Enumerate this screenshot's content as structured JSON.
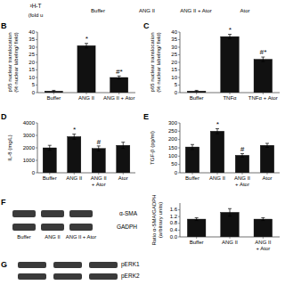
{
  "chart_data": [
    {
      "type": "strip",
      "y_label": "³H-T\n(fold u",
      "categories": [
        "Buffer",
        "ANG II",
        "ANG II + Ator",
        "Ator"
      ]
    },
    {
      "type": "bar",
      "title": "B",
      "categories": [
        "Buffer",
        "ANG II",
        "ANG II + Ator"
      ],
      "values": [
        1,
        31,
        10
      ],
      "errors": [
        0.5,
        1.5,
        1.0
      ],
      "y_label": "p65 nuclear translocation\n(% nuclear labeling/ field)",
      "ylim": [
        0,
        40
      ],
      "yticks": [
        0,
        5,
        10,
        15,
        20,
        25,
        30,
        35,
        40
      ],
      "annotations": [
        {
          "bar": 1,
          "text": "*"
        },
        {
          "bar": 2,
          "text": "#*"
        }
      ],
      "color": "#111111",
      "grid": false
    },
    {
      "type": "bar",
      "title": "C",
      "categories": [
        "Buffer",
        "TNFα",
        "TNFα + Ator"
      ],
      "values": [
        1,
        37,
        22
      ],
      "errors": [
        0.5,
        1.5,
        1.5
      ],
      "y_label": "p65 nuclear translocation\n(% nuclear labeling/ field)",
      "ylim": [
        0,
        40
      ],
      "yticks": [
        0,
        5,
        10,
        15,
        20,
        25,
        30,
        35,
        40
      ],
      "annotations": [
        {
          "bar": 1,
          "text": "*"
        },
        {
          "bar": 2,
          "text": "#*"
        }
      ],
      "color": "#111111",
      "grid": false
    },
    {
      "type": "bar",
      "title": "D",
      "categories": [
        "Buffer",
        "ANG II",
        "ANG II\n+ Ator",
        "Ator"
      ],
      "values": [
        2000,
        2900,
        1950,
        2200
      ],
      "errors": [
        200,
        200,
        200,
        250
      ],
      "y_label": "IL-8 (mg/L)",
      "ylim": [
        0,
        4000
      ],
      "yticks": [
        0,
        1000,
        2000,
        3000,
        4000
      ],
      "annotations": [
        {
          "bar": 1,
          "text": "*"
        },
        {
          "bar": 2,
          "text": "#"
        }
      ],
      "color": "#111111",
      "grid": false
    },
    {
      "type": "bar",
      "title": "E",
      "categories": [
        "Buffer",
        "ANG II",
        "ANG II\n+ Ator",
        "Ator"
      ],
      "values": [
        155,
        250,
        105,
        165
      ],
      "errors": [
        15,
        15,
        10,
        12
      ],
      "y_label": "TGF-β (pg/ml)",
      "ylim": [
        0,
        300
      ],
      "yticks": [
        0,
        50,
        100,
        150,
        200,
        250,
        300
      ],
      "annotations": [
        {
          "bar": 1,
          "text": "*"
        },
        {
          "bar": 2,
          "text": "#"
        }
      ],
      "color": "#111111",
      "grid": false
    },
    {
      "type": "blot",
      "title": "F",
      "categories": [
        "Buffer",
        "ANG II",
        "ANG II + Ator"
      ],
      "row_labels": [
        "α-SMA",
        "GADPH"
      ],
      "color": "#3a3a3a"
    },
    {
      "type": "bar",
      "categories": [
        "Buffer",
        "ANG II",
        "ANG II\n+ Ator"
      ],
      "values": [
        1.05,
        1.45,
        1.05
      ],
      "errors": [
        0.08,
        0.22,
        0.08
      ],
      "y_label": "Ratio α-SMA/GADPH\n(arbitrary units)",
      "ylim": [
        0.0,
        2.0
      ],
      "yticks": [
        {
          "value": 0.0,
          "label": "0.0"
        },
        0.4,
        0.8,
        1.2,
        1.6
      ],
      "color": "#111111",
      "grid": false
    },
    {
      "type": "blot",
      "title": "G",
      "categories": [
        null,
        null,
        null
      ],
      "row_labels": [
        "pERK1",
        "pERK2"
      ],
      "color": "#3a3a3a"
    }
  ]
}
